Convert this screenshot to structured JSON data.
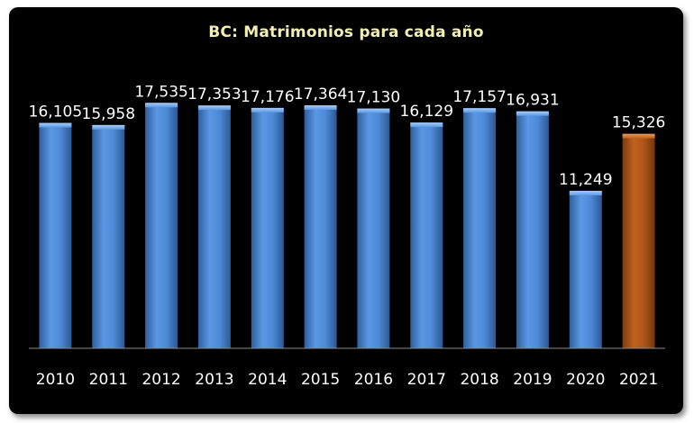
{
  "chart_data": {
    "type": "bar",
    "title": "BC: Matrimonios para cada año",
    "xlabel": "",
    "ylabel": "",
    "categories": [
      "2010",
      "2011",
      "2012",
      "2013",
      "2014",
      "2015",
      "2016",
      "2017",
      "2018",
      "2019",
      "2020",
      "2021"
    ],
    "values": [
      16105,
      15958,
      17535,
      17353,
      17176,
      17364,
      17130,
      16129,
      17157,
      16931,
      11249,
      15326
    ],
    "data_labels": [
      "16,105",
      "15,958",
      "17,535",
      "17,353",
      "17,176",
      "17,364",
      "17,130",
      "16,129",
      "17,157",
      "16,931",
      "11,249",
      "15,326"
    ],
    "ylim": [
      0,
      18200
    ],
    "grid": false,
    "legend": "none",
    "colors": {
      "background": "#000000",
      "bar": "#4a86d6",
      "highlight_bar": "#b0561a",
      "title": "#f3efb4",
      "text": "#ffffff"
    },
    "highlight_index": 11
  }
}
